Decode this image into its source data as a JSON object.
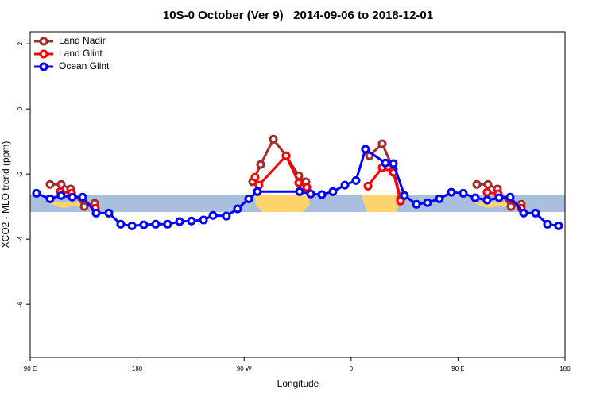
{
  "chart_data": {
    "type": "line",
    "title": "10S-0 October (Ver 9)   2014-09-06 to 2018-12-01",
    "x_label": "Longitude",
    "y_label": "XCO2 - MLO trend (ppm)",
    "xlim": [
      90,
      540
    ],
    "xticks": [
      {
        "value": 90,
        "label": "90 E"
      },
      180,
      {
        "value": 270,
        "label": "90 W"
      },
      {
        "value": 360,
        "label": "0"
      },
      {
        "value": 450,
        "label": "90 E"
      },
      {
        "value": 540,
        "label": "180"
      }
    ],
    "ylim": [
      -7.63,
      2.37
    ],
    "yticks": [
      -6,
      -4,
      -2,
      0,
      2
    ],
    "legend": "top-left",
    "series": [
      {
        "name": "Land Nadir",
        "color": "#a52a2a",
        "x": [
          106.7,
          116.1,
          124.1,
          135.5,
          144.2,
          null,
          277.2,
          283.9,
          294.6,
          305.3,
          316.0,
          322.0,
          null,
          375.5,
          386.2,
          395.6,
          401.6,
          null,
          465.8,
          475.1,
          483.2,
          494.5,
          503.2
        ],
        "values": [
          -2.32,
          -2.32,
          -2.46,
          -3.0,
          -2.9,
          null,
          -2.24,
          -1.71,
          -0.93,
          -1.44,
          -2.05,
          -2.24,
          null,
          -1.44,
          -1.07,
          -1.85,
          -2.76,
          null,
          -2.32,
          -2.32,
          -2.46,
          -3.0,
          -2.93
        ]
      },
      {
        "name": "Land Glint",
        "color": "#ff0000",
        "x": [
          115.4,
          124.8,
          144.8,
          null,
          279.2,
          282.5,
          305.3,
          316.0,
          322.7,
          null,
          374.2,
          386.2,
          390.9,
          395.6,
          401.6,
          null,
          474.4,
          483.8,
          503.2
        ],
        "values": [
          -2.54,
          -2.59,
          -3.05,
          null,
          -2.1,
          -2.34,
          -1.44,
          -2.27,
          -2.41,
          null,
          -2.37,
          -1.8,
          -1.78,
          -1.95,
          -2.83,
          null,
          -2.56,
          -2.61,
          -3.05
        ]
      },
      {
        "name": "Ocean Glint",
        "color": "#0000ff",
        "x": [
          95.3,
          106.7,
          116.1,
          125.4,
          134.1,
          145.5,
          156.2,
          166.2,
          175.6,
          185.6,
          195.6,
          205.7,
          215.7,
          225.7,
          235.8,
          243.8,
          255.1,
          264.5,
          273.9,
          281.2,
          316.7,
          326.0,
          335.4,
          344.7,
          354.8,
          364.1,
          372.1,
          388.9,
          395.6,
          404.9,
          415.0,
          424.3,
          434.3,
          444.4,
          454.4,
          464.4,
          474.4,
          484.5,
          493.8,
          505.2,
          515.2,
          525.3,
          534.6
        ],
        "values": [
          -2.59,
          -2.76,
          -2.66,
          -2.71,
          -2.71,
          -3.2,
          -3.2,
          -3.54,
          -3.59,
          -3.56,
          -3.54,
          -3.54,
          -3.46,
          -3.44,
          -3.41,
          -3.27,
          -3.29,
          -3.07,
          -2.76,
          -2.54,
          -2.54,
          -2.61,
          -2.63,
          -2.54,
          -2.34,
          -2.2,
          -1.24,
          -1.66,
          -1.68,
          -2.66,
          -2.93,
          -2.88,
          -2.76,
          -2.56,
          -2.59,
          -2.73,
          -2.8,
          -2.73,
          -2.71,
          -3.2,
          -3.2,
          -3.54,
          -3.59
        ]
      }
    ]
  }
}
